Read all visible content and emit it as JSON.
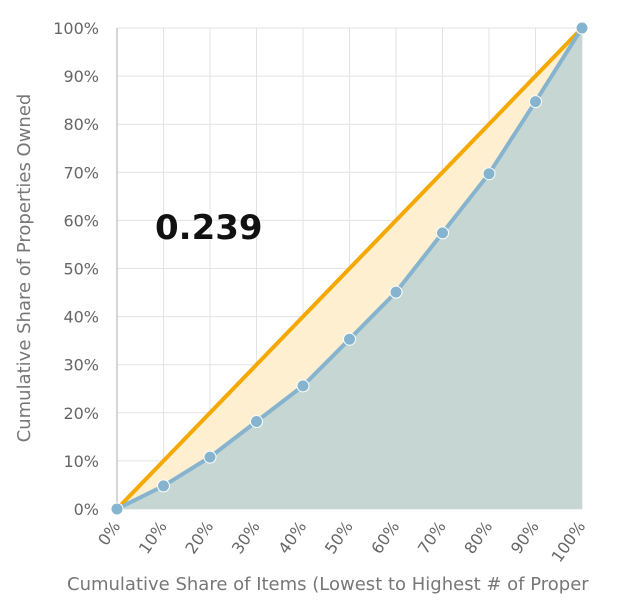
{
  "chart_data": {
    "type": "area",
    "annotation": "0.239",
    "xlabel": "Cumulative Share of Items (Lowest to Highest # of Proper",
    "ylabel": "Cumulative Share of Properties Owned",
    "x_tick_labels": [
      "0%",
      "10%",
      "20%",
      "30%",
      "40%",
      "50%",
      "60%",
      "70%",
      "80%",
      "90%",
      "100%"
    ],
    "y_tick_labels": [
      "0%",
      "10%",
      "20%",
      "30%",
      "40%",
      "50%",
      "60%",
      "70%",
      "80%",
      "90%",
      "100%"
    ],
    "xlim": [
      0,
      100
    ],
    "ylim": [
      0,
      100
    ],
    "grid": true,
    "series": [
      {
        "kind": "equality-line",
        "color": "#f5a800",
        "fill": "#fdefcf",
        "x": [
          0,
          100
        ],
        "y": [
          0,
          100
        ]
      },
      {
        "kind": "lorenz-curve",
        "color": "#86b4cf",
        "fill": "#c6d6d2",
        "x": [
          0,
          10,
          20,
          30,
          40,
          50,
          60,
          70,
          80,
          90,
          100
        ],
        "y": [
          0,
          4.8,
          10.8,
          18.2,
          25.6,
          35.3,
          45.1,
          57.4,
          69.7,
          84.7,
          100
        ]
      }
    ]
  }
}
